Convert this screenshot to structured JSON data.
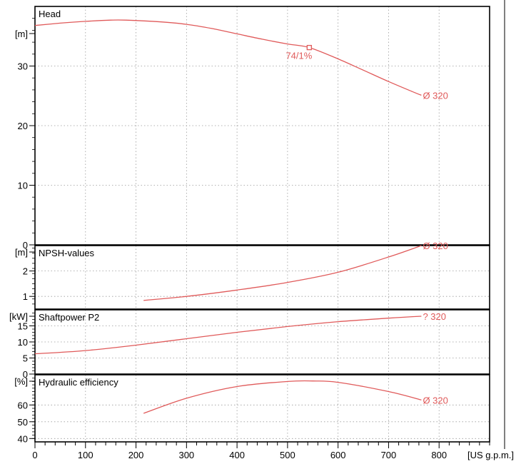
{
  "chart_data": {
    "type": "line",
    "x_unit_label": "[US g.p.m.]",
    "x_ticks": [
      0,
      100,
      200,
      300,
      400,
      500,
      600,
      700,
      800
    ],
    "xlim": [
      0,
      900
    ],
    "curve_color": "#e05a5a",
    "panels": [
      {
        "id": "head",
        "title": "Head",
        "unit_label": "[m]",
        "ylim": [
          0,
          40
        ],
        "y_ticks": [
          0,
          10,
          20,
          30
        ],
        "series": [
          {
            "name": "",
            "label": "Ø 320",
            "points": [
              [
                0,
                36.8
              ],
              [
                50,
                37.2
              ],
              [
                100,
                37.5
              ],
              [
                150,
                37.7
              ],
              [
                180,
                37.7
              ],
              [
                250,
                37.4
              ],
              [
                300,
                37.0
              ],
              [
                350,
                36.3
              ],
              [
                400,
                35.4
              ],
              [
                450,
                34.5
              ],
              [
                500,
                33.7
              ],
              [
                543,
                33.1
              ],
              [
                600,
                31.2
              ],
              [
                650,
                29.3
              ],
              [
                700,
                27.4
              ],
              [
                750,
                25.6
              ],
              [
                765,
                25.1
              ]
            ]
          }
        ],
        "annotations": [
          {
            "text": "74/1%",
            "x": 543,
            "y": 33.1
          }
        ]
      },
      {
        "id": "npsh",
        "title": "NPSH-values",
        "unit_label": "[m]",
        "ylim": [
          0.5,
          3.0
        ],
        "y_ticks": [
          1,
          2
        ],
        "series": [
          {
            "name": "",
            "label": "Ø 320",
            "points": [
              [
                215,
                0.84
              ],
              [
                300,
                1.0
              ],
              [
                400,
                1.25
              ],
              [
                500,
                1.55
              ],
              [
                600,
                1.95
              ],
              [
                700,
                2.55
              ],
              [
                765,
                3.0
              ]
            ]
          }
        ]
      },
      {
        "id": "power",
        "title": "Shaftpower P2",
        "unit_label": "[kW]",
        "ylim": [
          0,
          20
        ],
        "y_ticks": [
          0,
          5,
          10,
          15
        ],
        "series": [
          {
            "name": "",
            "label": "? 320",
            "points": [
              [
                0,
                6.3
              ],
              [
                100,
                7.3
              ],
              [
                200,
                9.0
              ],
              [
                300,
                11.0
              ],
              [
                400,
                13.0
              ],
              [
                500,
                14.8
              ],
              [
                600,
                16.3
              ],
              [
                700,
                17.4
              ],
              [
                765,
                18.0
              ]
            ]
          }
        ]
      },
      {
        "id": "efficiency",
        "title": "Hydraulic efficiency",
        "unit_label": "[%]",
        "ylim": [
          38,
          78
        ],
        "y_ticks": [
          40,
          50,
          60
        ],
        "series": [
          {
            "name": "",
            "label": "Ø 320",
            "points": [
              [
                215,
                55.0
              ],
              [
                300,
                64.0
              ],
              [
                400,
                71.0
              ],
              [
                500,
                74.0
              ],
              [
                550,
                74.3
              ],
              [
                600,
                73.5
              ],
              [
                700,
                68.0
              ],
              [
                765,
                63.0
              ]
            ]
          }
        ]
      }
    ]
  }
}
